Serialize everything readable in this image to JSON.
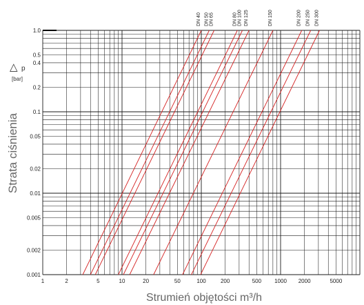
{
  "chart_data": {
    "type": "line",
    "xscale": "log",
    "yscale": "log",
    "xlim": [
      1,
      10000
    ],
    "ylim": [
      0.001,
      1.0
    ],
    "grid": true,
    "xlabel": "Strumień objętości m³/h",
    "ylabel": "Strata ciśnienia",
    "dp_symbol": "△",
    "dp_letter": "p",
    "dp_unit": "[bar]",
    "x_tick_labels": [
      {
        "value": 1,
        "label": "1"
      },
      {
        "value": 2,
        "label": "2"
      },
      {
        "value": 5,
        "label": "5"
      },
      {
        "value": 10,
        "label": "10"
      },
      {
        "value": 20,
        "label": "20"
      },
      {
        "value": 50,
        "label": "50"
      },
      {
        "value": 100,
        "label": "100"
      },
      {
        "value": 200,
        "label": "200"
      },
      {
        "value": 500,
        "label": "500"
      },
      {
        "value": 1000,
        "label": "1000"
      },
      {
        "value": 2000,
        "label": "2000"
      },
      {
        "value": 5000,
        "label": "5000"
      }
    ],
    "y_tick_labels": [
      {
        "value": 1.0,
        "label": "1.0"
      },
      {
        "value": 0.5,
        "label": "0.5"
      },
      {
        "value": 0.4,
        "label": "0.4"
      },
      {
        "value": 0.2,
        "label": "0.2"
      },
      {
        "value": 0.1,
        "label": "0.1"
      },
      {
        "value": 0.05,
        "label": "0.05"
      },
      {
        "value": 0.02,
        "label": "0.02"
      },
      {
        "value": 0.01,
        "label": "0.01"
      },
      {
        "value": 0.005,
        "label": "0.005"
      },
      {
        "value": 0.002,
        "label": "0.002"
      },
      {
        "value": 0.001,
        "label": "0.001"
      }
    ],
    "line_color": "#d42020",
    "series": [
      {
        "name": "DN 40",
        "x": [
          3.2,
          100
        ],
        "y": [
          0.001,
          1.0
        ]
      },
      {
        "name": "DN 50",
        "x": [
          4.0,
          126
        ],
        "y": [
          0.001,
          1.0
        ]
      },
      {
        "name": "DN 65",
        "x": [
          4.6,
          145
        ],
        "y": [
          0.001,
          1.0
        ]
      },
      {
        "name": "DN 80",
        "x": [
          9.0,
          285
        ],
        "y": [
          0.001,
          1.0
        ]
      },
      {
        "name": "DN 100",
        "x": [
          10.4,
          330
        ],
        "y": [
          0.001,
          1.0
        ]
      },
      {
        "name": "DN 125",
        "x": [
          12.5,
          400
        ],
        "y": [
          0.001,
          1.0
        ]
      },
      {
        "name": "DN 150",
        "x": [
          25,
          800
        ],
        "y": [
          0.001,
          1.0
        ]
      },
      {
        "name": "DN 200",
        "x": [
          58,
          1850
        ],
        "y": [
          0.001,
          1.0
        ]
      },
      {
        "name": "DN 250",
        "x": [
          75,
          2400
        ],
        "y": [
          0.001,
          1.0
        ]
      },
      {
        "name": "DN 300",
        "x": [
          98,
          3100
        ],
        "y": [
          0.001,
          1.0
        ]
      }
    ]
  }
}
